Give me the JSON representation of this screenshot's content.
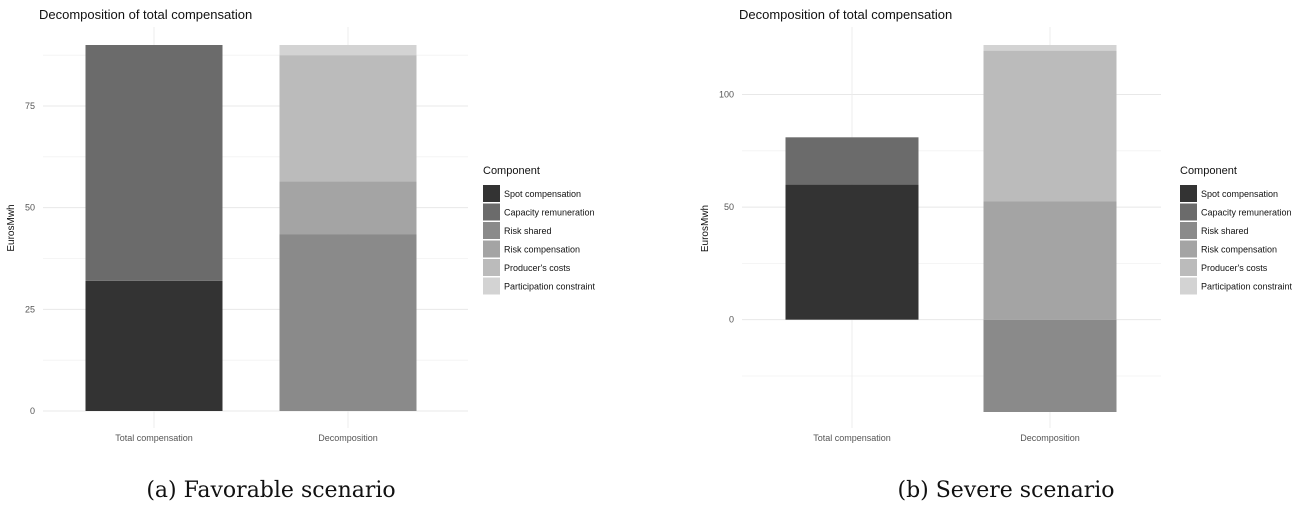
{
  "figures": [
    {
      "caption": "(a) Favorable scenario",
      "chart_data": {
        "type": "bar",
        "stacked": true,
        "title": "Decomposition of total compensation",
        "xlabel": "",
        "ylabel": "EurosMwh",
        "categories": [
          "Total compensation",
          "Decomposition"
        ],
        "ylim": [
          0,
          90
        ],
        "yticks": [
          0,
          25,
          50,
          75
        ],
        "grid": true,
        "legend_position": "right",
        "legend_title": "Component",
        "series": [
          {
            "name": "Spot compensation",
            "color": "#333333",
            "values": [
              32,
              0
            ]
          },
          {
            "name": "Capacity remuneration",
            "color": "#6b6b6b",
            "values": [
              58,
              0
            ]
          },
          {
            "name": "Risk shared",
            "color": "#8a8a8a",
            "values": [
              0,
              43.5
            ]
          },
          {
            "name": "Risk compensation",
            "color": "#a4a4a4",
            "values": [
              0,
              13
            ]
          },
          {
            "name": "Producer's costs",
            "color": "#bbbbbb",
            "values": [
              0,
              31
            ]
          },
          {
            "name": "Participation constraint",
            "color": "#d3d3d3",
            "values": [
              0,
              2.5
            ]
          }
        ]
      }
    },
    {
      "caption": "(b) Severe scenario",
      "chart_data": {
        "type": "bar",
        "stacked": true,
        "title": "Decomposition of total compensation",
        "xlabel": "",
        "ylabel": "EurosMwh",
        "categories": [
          "Total compensation",
          "Decomposition"
        ],
        "ylim": [
          -41,
          122
        ],
        "yticks": [
          0,
          50,
          100
        ],
        "grid": true,
        "legend_position": "right",
        "legend_title": "Component",
        "series": [
          {
            "name": "Spot compensation",
            "color": "#333333",
            "values": [
              60,
              0
            ]
          },
          {
            "name": "Capacity remuneration",
            "color": "#6b6b6b",
            "values": [
              21,
              0
            ]
          },
          {
            "name": "Risk shared",
            "color": "#8a8a8a",
            "values": [
              0,
              -41
            ]
          },
          {
            "name": "Risk compensation",
            "color": "#a4a4a4",
            "values": [
              0,
              52.5
            ]
          },
          {
            "name": "Producer's costs",
            "color": "#bbbbbb",
            "values": [
              0,
              67
            ]
          },
          {
            "name": "Participation constraint",
            "color": "#d3d3d3",
            "values": [
              0,
              2.5
            ]
          }
        ]
      }
    }
  ]
}
